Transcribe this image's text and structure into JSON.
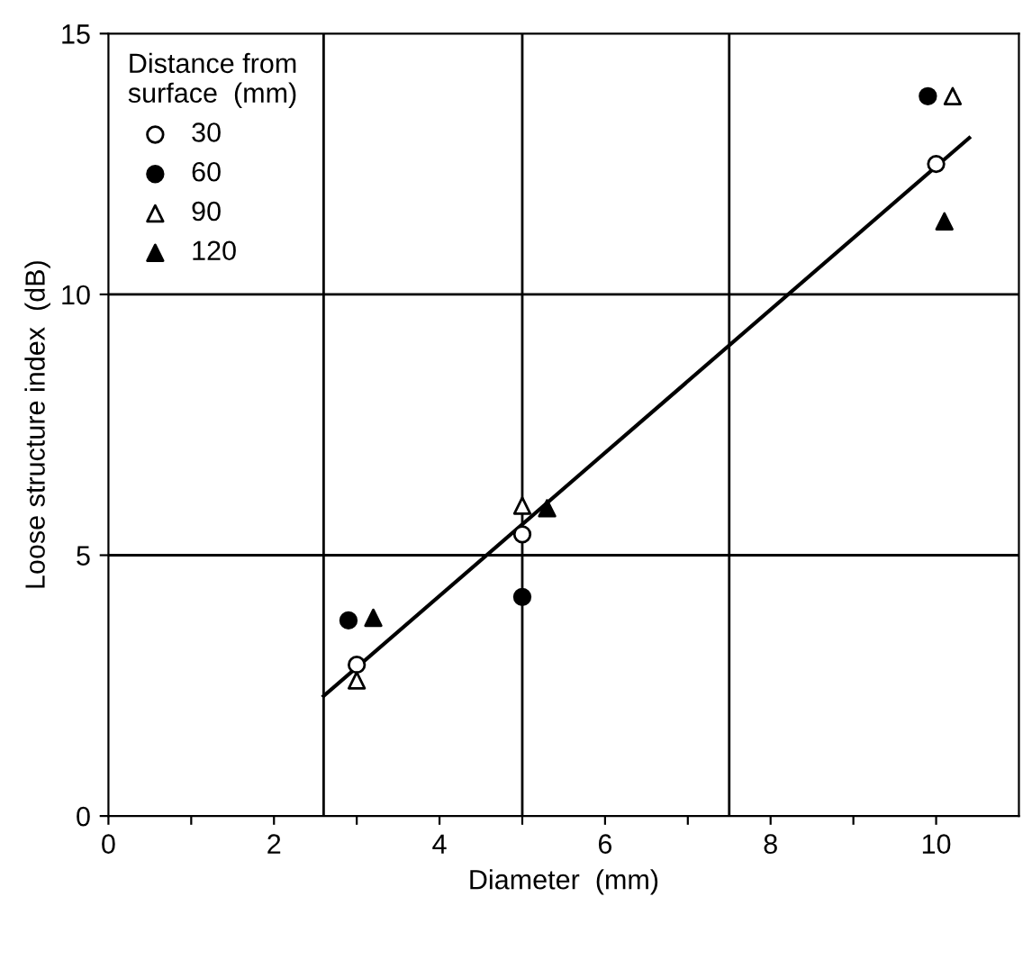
{
  "chart_data": {
    "type": "scatter",
    "xlabel": "Diameter  (mm)",
    "ylabel": "Loose structure index  (dB)",
    "legend_title": "Distance from\nsurface  (mm)",
    "legend": "top left",
    "grid": false,
    "xlim": [
      0,
      11
    ],
    "ylim": [
      0,
      15
    ],
    "xticks": [
      0,
      {
        "value": 1,
        "label": null
      },
      2,
      {
        "value": 3,
        "label": null
      },
      4,
      {
        "value": 5,
        "label": null
      },
      6,
      {
        "value": 7,
        "label": null
      },
      8,
      {
        "value": 9,
        "label": null
      },
      10
    ],
    "yticks": [
      0,
      5,
      10,
      15
    ],
    "ref_lines": [
      {
        "axis": "x",
        "value": 2.6,
        "label": null,
        "color": "#000000"
      },
      {
        "axis": "x",
        "value": 5,
        "label": null,
        "color": "#000000"
      },
      {
        "axis": "x",
        "value": 7.5,
        "label": null,
        "color": "#000000"
      },
      {
        "axis": "y",
        "value": 5,
        "label": null,
        "color": "#000000"
      },
      {
        "axis": "y",
        "value": 10,
        "label": null,
        "color": "#000000"
      }
    ],
    "series": [
      {
        "name": "30",
        "color": "#ffffff",
        "marker": "circle",
        "x": [
          3.0,
          5.0,
          10.0
        ],
        "values": [
          2.9,
          5.4,
          12.5
        ]
      },
      {
        "name": "60",
        "color": "#000000",
        "marker": "circle",
        "x": [
          2.9,
          5.0,
          9.9
        ],
        "values": [
          3.75,
          4.2,
          13.8
        ]
      },
      {
        "name": "90",
        "color": "#ffffff",
        "marker": "triangle",
        "x": [
          3.0,
          5.0,
          10.2
        ],
        "values": [
          2.6,
          5.95,
          13.8
        ]
      },
      {
        "name": "120",
        "color": "#000000",
        "marker": "triangle",
        "x": [
          3.2,
          5.3,
          10.1
        ],
        "values": [
          3.8,
          5.9,
          11.4
        ]
      },
      {
        "type": "line",
        "color": "#000000",
        "marker": "none",
        "line_style": "solid",
        "x": [
          2.6,
          10.4
        ],
        "values": [
          2.3,
          13.0
        ]
      }
    ]
  }
}
